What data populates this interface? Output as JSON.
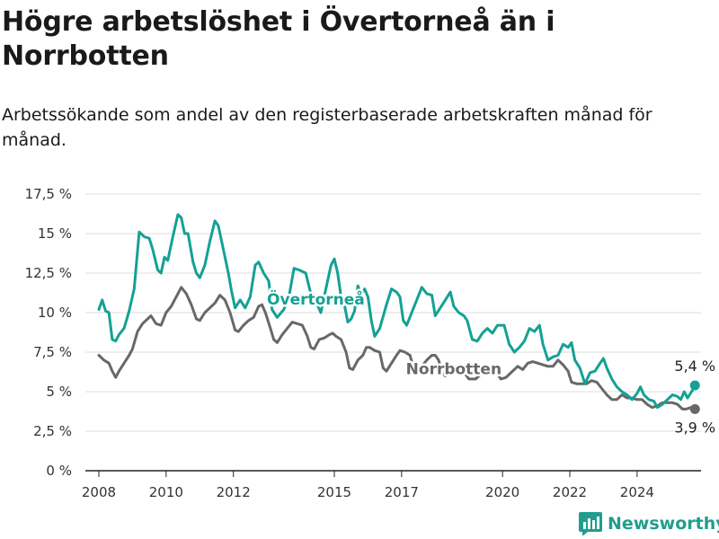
{
  "title": "Högre arbetslöshet i Övertorneå än i Norrbotten",
  "subtitle": "Arbetssökande som andel av den registerbaserade arbetskraften månad för månad.",
  "brand": {
    "name": "Newsworthy",
    "color": "#1f9e8e"
  },
  "chart_data": {
    "type": "line",
    "xlim": [
      2007.6,
      2025.9
    ],
    "ylim": [
      0,
      17.5
    ],
    "x_ticks": [
      2008,
      2010,
      2012,
      2015,
      2017,
      2020,
      2022,
      2024
    ],
    "x_tick_labels": [
      "2008",
      "2010",
      "2012",
      "2015",
      "2017",
      "2020",
      "2022",
      "2024"
    ],
    "y_ticks": [
      0,
      2.5,
      5,
      7.5,
      10,
      12.5,
      15,
      17.5
    ],
    "y_tick_labels": [
      "0 %",
      "2,5 %",
      "5 %",
      "7,5 %",
      "10 %",
      "12,5 %",
      "15 %",
      "17,5 %"
    ],
    "grid": true,
    "series": [
      {
        "name": "Övertorneå",
        "color": "#14a194",
        "end_label": "5,4 %",
        "points": [
          [
            2008.0,
            10.2
          ],
          [
            2008.1,
            10.8
          ],
          [
            2008.2,
            10.1
          ],
          [
            2008.3,
            10.0
          ],
          [
            2008.4,
            8.3
          ],
          [
            2008.5,
            8.2
          ],
          [
            2008.6,
            8.6
          ],
          [
            2008.75,
            9.0
          ],
          [
            2008.9,
            10.1
          ],
          [
            2009.05,
            11.5
          ],
          [
            2009.2,
            15.1
          ],
          [
            2009.35,
            14.8
          ],
          [
            2009.5,
            14.7
          ],
          [
            2009.6,
            14.0
          ],
          [
            2009.75,
            12.7
          ],
          [
            2009.85,
            12.5
          ],
          [
            2009.95,
            13.5
          ],
          [
            2010.05,
            13.3
          ],
          [
            2010.2,
            14.8
          ],
          [
            2010.35,
            16.2
          ],
          [
            2010.45,
            16.0
          ],
          [
            2010.55,
            15.0
          ],
          [
            2010.65,
            15.0
          ],
          [
            2010.8,
            13.2
          ],
          [
            2010.9,
            12.5
          ],
          [
            2011.0,
            12.2
          ],
          [
            2011.15,
            13.0
          ],
          [
            2011.3,
            14.5
          ],
          [
            2011.45,
            15.8
          ],
          [
            2011.55,
            15.5
          ],
          [
            2011.7,
            14.0
          ],
          [
            2011.85,
            12.5
          ],
          [
            2011.95,
            11.3
          ],
          [
            2012.05,
            10.3
          ],
          [
            2012.2,
            10.8
          ],
          [
            2012.35,
            10.3
          ],
          [
            2012.5,
            11.0
          ],
          [
            2012.65,
            13.0
          ],
          [
            2012.75,
            13.2
          ],
          [
            2012.9,
            12.5
          ],
          [
            2013.05,
            12.0
          ],
          [
            2013.15,
            10.2
          ],
          [
            2013.3,
            9.7
          ],
          [
            2013.5,
            10.2
          ],
          [
            2013.65,
            11.0
          ],
          [
            2013.8,
            12.8
          ],
          [
            2013.95,
            12.7
          ],
          [
            2014.15,
            12.5
          ],
          [
            2014.3,
            11.2
          ],
          [
            2014.45,
            10.7
          ],
          [
            2014.6,
            10.0
          ],
          [
            2014.75,
            11.5
          ],
          [
            2014.9,
            13.0
          ],
          [
            2015.0,
            13.4
          ],
          [
            2015.1,
            12.5
          ],
          [
            2015.2,
            11.0
          ],
          [
            2015.3,
            10.5
          ],
          [
            2015.4,
            9.4
          ],
          [
            2015.5,
            9.6
          ],
          [
            2015.6,
            10.1
          ],
          [
            2015.7,
            11.7
          ],
          [
            2015.8,
            11.1
          ],
          [
            2015.9,
            11.5
          ],
          [
            2016.0,
            11.0
          ],
          [
            2016.1,
            9.5
          ],
          [
            2016.2,
            8.5
          ],
          [
            2016.35,
            9.0
          ],
          [
            2016.55,
            10.5
          ],
          [
            2016.7,
            11.5
          ],
          [
            2016.85,
            11.3
          ],
          [
            2016.95,
            11.0
          ],
          [
            2017.05,
            9.5
          ],
          [
            2017.15,
            9.2
          ],
          [
            2017.3,
            10.0
          ],
          [
            2017.45,
            10.8
          ],
          [
            2017.6,
            11.6
          ],
          [
            2017.75,
            11.2
          ],
          [
            2017.9,
            11.1
          ],
          [
            2018.0,
            9.8
          ],
          [
            2018.15,
            10.3
          ],
          [
            2018.3,
            10.8
          ],
          [
            2018.45,
            11.3
          ],
          [
            2018.55,
            10.4
          ],
          [
            2018.7,
            10.0
          ],
          [
            2018.85,
            9.8
          ],
          [
            2018.95,
            9.5
          ],
          [
            2019.1,
            8.3
          ],
          [
            2019.25,
            8.2
          ],
          [
            2019.4,
            8.7
          ],
          [
            2019.55,
            9.0
          ],
          [
            2019.7,
            8.7
          ],
          [
            2019.85,
            9.2
          ],
          [
            2020.05,
            9.2
          ],
          [
            2020.2,
            8.0
          ],
          [
            2020.35,
            7.5
          ],
          [
            2020.5,
            7.8
          ],
          [
            2020.65,
            8.2
          ],
          [
            2020.8,
            9.0
          ],
          [
            2020.95,
            8.8
          ],
          [
            2021.1,
            9.2
          ],
          [
            2021.2,
            8.0
          ],
          [
            2021.35,
            7.0
          ],
          [
            2021.5,
            7.2
          ],
          [
            2021.65,
            7.3
          ],
          [
            2021.8,
            8.0
          ],
          [
            2021.95,
            7.8
          ],
          [
            2022.05,
            8.1
          ],
          [
            2022.15,
            7.0
          ],
          [
            2022.3,
            6.5
          ],
          [
            2022.45,
            5.5
          ],
          [
            2022.6,
            6.2
          ],
          [
            2022.75,
            6.3
          ],
          [
            2022.9,
            6.8
          ],
          [
            2023.0,
            7.1
          ],
          [
            2023.1,
            6.5
          ],
          [
            2023.25,
            5.8
          ],
          [
            2023.4,
            5.3
          ],
          [
            2023.55,
            5.0
          ],
          [
            2023.7,
            4.8
          ],
          [
            2023.85,
            4.5
          ],
          [
            2024.0,
            4.9
          ],
          [
            2024.1,
            5.3
          ],
          [
            2024.2,
            4.8
          ],
          [
            2024.35,
            4.5
          ],
          [
            2024.5,
            4.4
          ],
          [
            2024.6,
            4.0
          ],
          [
            2024.75,
            4.2
          ],
          [
            2024.9,
            4.5
          ],
          [
            2025.05,
            4.8
          ],
          [
            2025.2,
            4.7
          ],
          [
            2025.3,
            4.5
          ],
          [
            2025.4,
            5.0
          ],
          [
            2025.5,
            4.6
          ],
          [
            2025.65,
            5.1
          ],
          [
            2025.72,
            5.4
          ]
        ]
      },
      {
        "name": "Norrbotten",
        "color": "#686868",
        "end_label": "3,9 %",
        "points": [
          [
            2008.0,
            7.3
          ],
          [
            2008.15,
            7.0
          ],
          [
            2008.3,
            6.8
          ],
          [
            2008.4,
            6.3
          ],
          [
            2008.5,
            5.9
          ],
          [
            2008.6,
            6.3
          ],
          [
            2008.75,
            6.8
          ],
          [
            2008.9,
            7.3
          ],
          [
            2009.0,
            7.7
          ],
          [
            2009.15,
            8.8
          ],
          [
            2009.3,
            9.3
          ],
          [
            2009.45,
            9.6
          ],
          [
            2009.55,
            9.8
          ],
          [
            2009.7,
            9.3
          ],
          [
            2009.85,
            9.2
          ],
          [
            2010.0,
            10.0
          ],
          [
            2010.15,
            10.4
          ],
          [
            2010.3,
            11.0
          ],
          [
            2010.45,
            11.6
          ],
          [
            2010.6,
            11.2
          ],
          [
            2010.75,
            10.5
          ],
          [
            2010.9,
            9.6
          ],
          [
            2011.0,
            9.5
          ],
          [
            2011.15,
            10.0
          ],
          [
            2011.3,
            10.3
          ],
          [
            2011.45,
            10.6
          ],
          [
            2011.6,
            11.1
          ],
          [
            2011.75,
            10.8
          ],
          [
            2011.9,
            10.0
          ],
          [
            2012.05,
            8.9
          ],
          [
            2012.15,
            8.8
          ],
          [
            2012.3,
            9.2
          ],
          [
            2012.45,
            9.5
          ],
          [
            2012.6,
            9.7
          ],
          [
            2012.75,
            10.4
          ],
          [
            2012.85,
            10.5
          ],
          [
            2012.95,
            10.0
          ],
          [
            2013.1,
            9.0
          ],
          [
            2013.2,
            8.3
          ],
          [
            2013.3,
            8.1
          ],
          [
            2013.45,
            8.6
          ],
          [
            2013.6,
            9.0
          ],
          [
            2013.75,
            9.4
          ],
          [
            2013.9,
            9.3
          ],
          [
            2014.05,
            9.2
          ],
          [
            2014.2,
            8.5
          ],
          [
            2014.3,
            7.8
          ],
          [
            2014.4,
            7.7
          ],
          [
            2014.55,
            8.3
          ],
          [
            2014.7,
            8.4
          ],
          [
            2014.85,
            8.6
          ],
          [
            2014.95,
            8.7
          ],
          [
            2015.05,
            8.5
          ],
          [
            2015.2,
            8.3
          ],
          [
            2015.35,
            7.5
          ],
          [
            2015.45,
            6.5
          ],
          [
            2015.55,
            6.4
          ],
          [
            2015.7,
            7.0
          ],
          [
            2015.85,
            7.3
          ],
          [
            2015.95,
            7.8
          ],
          [
            2016.05,
            7.8
          ],
          [
            2016.2,
            7.6
          ],
          [
            2016.35,
            7.5
          ],
          [
            2016.45,
            6.5
          ],
          [
            2016.55,
            6.3
          ],
          [
            2016.7,
            6.8
          ],
          [
            2016.85,
            7.3
          ],
          [
            2016.95,
            7.6
          ],
          [
            2017.1,
            7.5
          ],
          [
            2017.25,
            7.3
          ],
          [
            2017.35,
            6.5
          ],
          [
            2017.45,
            6.2
          ],
          [
            2017.6,
            6.6
          ],
          [
            2017.75,
            7.0
          ],
          [
            2017.9,
            7.3
          ],
          [
            2018.0,
            7.3
          ],
          [
            2018.1,
            7.0
          ],
          [
            2018.2,
            6.2
          ],
          [
            2018.3,
            6.0
          ],
          [
            2018.45,
            6.2
          ],
          [
            2018.6,
            6.6
          ],
          [
            2018.8,
            6.4
          ],
          [
            2019.0,
            5.8
          ],
          [
            2019.2,
            5.8
          ],
          [
            2019.4,
            6.2
          ],
          [
            2019.6,
            6.2
          ],
          [
            2019.8,
            6.3
          ],
          [
            2019.95,
            5.8
          ],
          [
            2020.1,
            5.9
          ],
          [
            2020.3,
            6.3
          ],
          [
            2020.45,
            6.6
          ],
          [
            2020.6,
            6.4
          ],
          [
            2020.75,
            6.8
          ],
          [
            2020.9,
            6.9
          ],
          [
            2021.05,
            6.8
          ],
          [
            2021.2,
            6.7
          ],
          [
            2021.35,
            6.6
          ],
          [
            2021.5,
            6.6
          ],
          [
            2021.65,
            7.0
          ],
          [
            2021.8,
            6.7
          ],
          [
            2021.95,
            6.3
          ],
          [
            2022.05,
            5.6
          ],
          [
            2022.2,
            5.5
          ],
          [
            2022.35,
            5.5
          ],
          [
            2022.5,
            5.5
          ],
          [
            2022.65,
            5.7
          ],
          [
            2022.8,
            5.6
          ],
          [
            2022.95,
            5.2
          ],
          [
            2023.1,
            4.8
          ],
          [
            2023.25,
            4.5
          ],
          [
            2023.4,
            4.5
          ],
          [
            2023.55,
            4.8
          ],
          [
            2023.7,
            4.6
          ],
          [
            2023.85,
            4.6
          ],
          [
            2024.0,
            4.5
          ],
          [
            2024.15,
            4.5
          ],
          [
            2024.3,
            4.2
          ],
          [
            2024.45,
            4.0
          ],
          [
            2024.6,
            4.1
          ],
          [
            2024.75,
            4.3
          ],
          [
            2024.9,
            4.3
          ],
          [
            2025.05,
            4.3
          ],
          [
            2025.2,
            4.2
          ],
          [
            2025.35,
            3.9
          ],
          [
            2025.45,
            3.9
          ],
          [
            2025.6,
            4.0
          ],
          [
            2025.72,
            3.9
          ]
        ]
      }
    ]
  }
}
